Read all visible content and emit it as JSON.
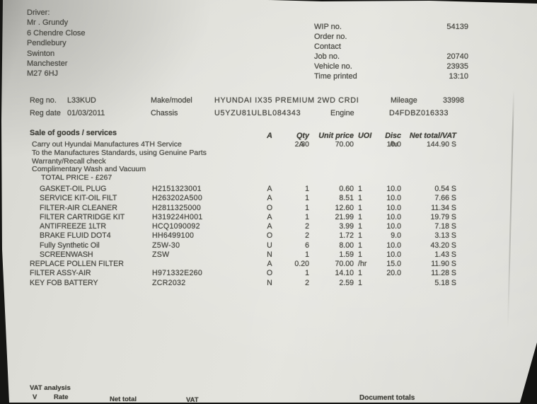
{
  "driver_block": {
    "label": "Driver:",
    "lines": [
      "Mr . Grundy",
      "6 Chendre Close",
      "Pendlebury",
      "Swinton",
      "Manchester",
      "M27 6HJ"
    ]
  },
  "job_info": [
    {
      "label": "WIP no.",
      "value": "54139"
    },
    {
      "label": "Order no.",
      "value": ""
    },
    {
      "label": "Contact",
      "value": ""
    },
    {
      "label": "Job no.",
      "value": "20740"
    },
    {
      "label": "Vehicle no.",
      "value": "23935"
    },
    {
      "label": "Time printed",
      "value": "13:10"
    }
  ],
  "vehicle": {
    "reg_no_label": "Reg no.",
    "reg_no": "L33KUD",
    "make_model_label": "Make/model",
    "make_model": "HYUNDAI IX35 PREMIUM 2WD CRDI",
    "mileage_label": "Mileage",
    "mileage": "33998",
    "reg_date_label": "Reg date",
    "reg_date": "01/03/2011",
    "chassis_label": "Chassis",
    "chassis": "U5YZU81ULBL084343",
    "engine_label": "Engine",
    "engine": "D4FDBZ016333"
  },
  "goods_table": {
    "section_title": "Sale of goods / services",
    "col_headers": {
      "a": "A",
      "qty": "Qty",
      "unit_price": "Unit price",
      "uoi": "UOI",
      "disc": "Disc",
      "net_total": "Net total/VAT"
    },
    "service": {
      "line1": "Carry out Hyundai Manufactures 4TH Service",
      "extra_lines": [
        "To the Manufactures Standards, using Genuine Parts",
        "Warranty/Recall check",
        "Complimentary Wash and Vacuum",
        "TOTAL PRICE  -  £267"
      ],
      "a": "A",
      "qty": "2.30",
      "unit_price": "70.00",
      "uoi": "/hr",
      "disc": "10.0",
      "net_total": "144.90 S"
    },
    "rows": [
      {
        "desc": "GASKET-OIL PLUG",
        "part": "H2151323001",
        "a": "A",
        "qty": "1",
        "unit_price": "0.60",
        "uoi": "1",
        "disc": "10.0",
        "net_total": "0.54 S",
        "indent": true
      },
      {
        "desc": "SERVICE KIT-OIL FILT",
        "part": "H263202A500",
        "a": "A",
        "qty": "1",
        "unit_price": "8.51",
        "uoi": "1",
        "disc": "10.0",
        "net_total": "7.66 S",
        "indent": true
      },
      {
        "desc": "FILTER-AIR CLEANER",
        "part": "H2811325000",
        "a": "O",
        "qty": "1",
        "unit_price": "12.60",
        "uoi": "1",
        "disc": "10.0",
        "net_total": "11.34 S",
        "indent": true
      },
      {
        "desc": "FILTER CARTRIDGE KIT",
        "part": "H319224H001",
        "a": "A",
        "qty": "1",
        "unit_price": "21.99",
        "uoi": "1",
        "disc": "10.0",
        "net_total": "19.79 S",
        "indent": true
      },
      {
        "desc": "ANTIFREEZE 1LTR",
        "part": "HCQ1090092",
        "a": "A",
        "qty": "2",
        "unit_price": "3.99",
        "uoi": "1",
        "disc": "10.0",
        "net_total": "7.18 S",
        "indent": true
      },
      {
        "desc": "BRAKE FLUID DOT4",
        "part": "HH6499100",
        "a": "O",
        "qty": "2",
        "unit_price": "1.72",
        "uoi": "1",
        "disc": "9.0",
        "net_total": "3.13 S",
        "indent": true
      },
      {
        "desc": "Fully Synthetic Oil",
        "part": "Z5W-30",
        "a": "U",
        "qty": "6",
        "unit_price": "8.00",
        "uoi": "1",
        "disc": "10.0",
        "net_total": "43.20 S",
        "indent": true
      },
      {
        "desc": "SCREENWASH",
        "part": "ZSW",
        "a": "N",
        "qty": "1",
        "unit_price": "1.59",
        "uoi": "1",
        "disc": "10.0",
        "net_total": "1.43 S",
        "indent": true
      },
      {
        "desc": "REPLACE POLLEN FILTER",
        "part": "",
        "a": "A",
        "qty": "0.20",
        "unit_price": "70.00",
        "uoi": "/hr",
        "disc": "15.0",
        "net_total": "11.90 S",
        "indent": false
      },
      {
        "desc": "FILTER ASSY-AIR",
        "part": "H971332E260",
        "a": "O",
        "qty": "1",
        "unit_price": "14.10",
        "uoi": "1",
        "disc": "20.0",
        "net_total": "11.28 S",
        "indent": false
      },
      {
        "desc": "KEY FOB BATTERY",
        "part": "ZCR2032",
        "a": "N",
        "qty": "2",
        "unit_price": "2.59",
        "uoi": "1",
        "disc": "",
        "net_total": "5.18 S",
        "indent": false
      }
    ]
  },
  "vat_analysis": {
    "title": "VAT analysis",
    "headers": {
      "v": "V",
      "rate": "Rate",
      "net_total": "Net total",
      "vat": "VAT"
    },
    "document_totals_label": "Document totals"
  }
}
